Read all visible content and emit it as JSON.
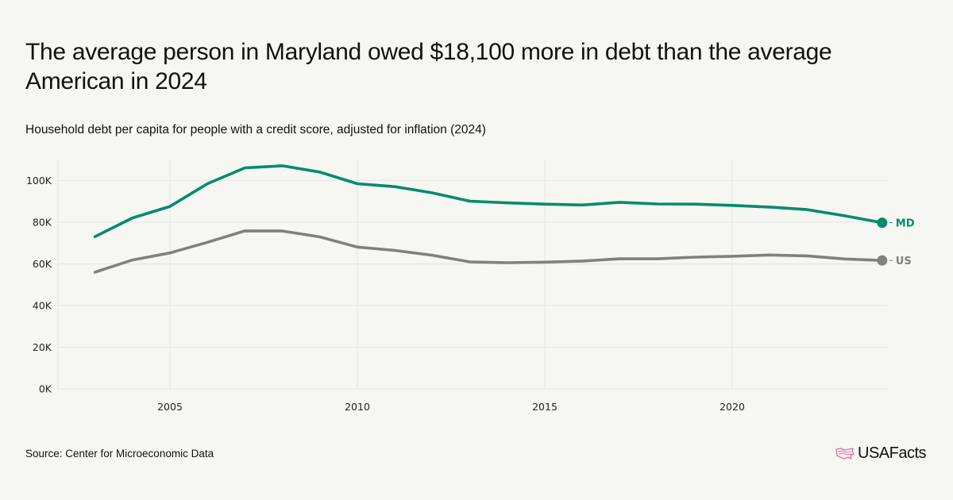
{
  "header": {
    "title": "The average person in Maryland owed $18,100 more in debt than the average American in 2024",
    "subtitle": "Household debt per capita for people with a credit score, adjusted for inflation (2024)"
  },
  "footer": {
    "source": "Source: Center for Microeconomic Data",
    "logo_text": "USAFacts",
    "logo_icon": "us-map-icon"
  },
  "chart_data": {
    "type": "line",
    "title": "Household debt per capita for people with a credit score, adjusted for inflation (2024)",
    "xlabel": "",
    "ylabel": "",
    "x": [
      2003,
      2004,
      2005,
      2006,
      2007,
      2008,
      2009,
      2010,
      2011,
      2012,
      2013,
      2014,
      2015,
      2016,
      2017,
      2018,
      2019,
      2020,
      2021,
      2022,
      2023,
      2024
    ],
    "xlim": [
      2001.6,
      2025.1
    ],
    "ylim": [
      0,
      110000
    ],
    "grid": true,
    "x_ticks": [
      2005,
      2010,
      2015,
      2020
    ],
    "x_tick_labels": [
      "2005",
      "2010",
      "2015",
      "2020"
    ],
    "y_ticks": [
      0,
      20000,
      40000,
      60000,
      80000,
      100000
    ],
    "y_tick_labels": [
      "0K",
      "20K",
      "40K",
      "60K",
      "80K",
      "100K"
    ],
    "legend": "end-of-line labels",
    "series": [
      {
        "name": "MD",
        "color": "#008c6a",
        "values": [
          73000,
          82000,
          87500,
          98400,
          106000,
          107000,
          104000,
          98400,
          97000,
          94000,
          90000,
          89200,
          88600,
          88200,
          89500,
          88700,
          88600,
          88000,
          87200,
          86000,
          83000,
          79700
        ]
      },
      {
        "name": "US",
        "color": "#808080",
        "values": [
          56000,
          61800,
          65200,
          70300,
          75800,
          75700,
          72900,
          68000,
          66400,
          64100,
          60900,
          60500,
          60800,
          61300,
          62400,
          62400,
          63200,
          63600,
          64200,
          63800,
          62300,
          61600
        ]
      }
    ]
  }
}
